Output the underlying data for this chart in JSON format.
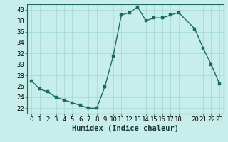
{
  "x": [
    0,
    1,
    2,
    3,
    4,
    5,
    6,
    7,
    8,
    9,
    10,
    11,
    12,
    13,
    14,
    15,
    16,
    17,
    18,
    20,
    21,
    22,
    23
  ],
  "y": [
    27,
    25.5,
    25,
    24,
    23.5,
    23,
    22.5,
    22,
    22,
    26,
    31.5,
    39,
    39.5,
    40.5,
    38,
    38.5,
    38.5,
    39,
    39.5,
    36.5,
    33,
    30,
    26.5
  ],
  "line_color": "#1a6b5a",
  "marker_color": "#1a6b5a",
  "bg_color": "#c8eeeb",
  "grid_color": "#a0d8d4",
  "xlabel": "Humidex (Indice chaleur)",
  "ylabel": "",
  "xlim": [
    -0.5,
    23.5
  ],
  "ylim": [
    21,
    41
  ],
  "yticks": [
    22,
    24,
    26,
    28,
    30,
    32,
    34,
    36,
    38,
    40
  ],
  "xticks": [
    0,
    1,
    2,
    3,
    4,
    5,
    6,
    7,
    8,
    9,
    10,
    11,
    12,
    13,
    14,
    15,
    16,
    17,
    18,
    20,
    21,
    22,
    23
  ],
  "tick_label_fontsize": 6.5,
  "xlabel_fontsize": 7.5,
  "linewidth": 1.0,
  "markersize": 2.5
}
